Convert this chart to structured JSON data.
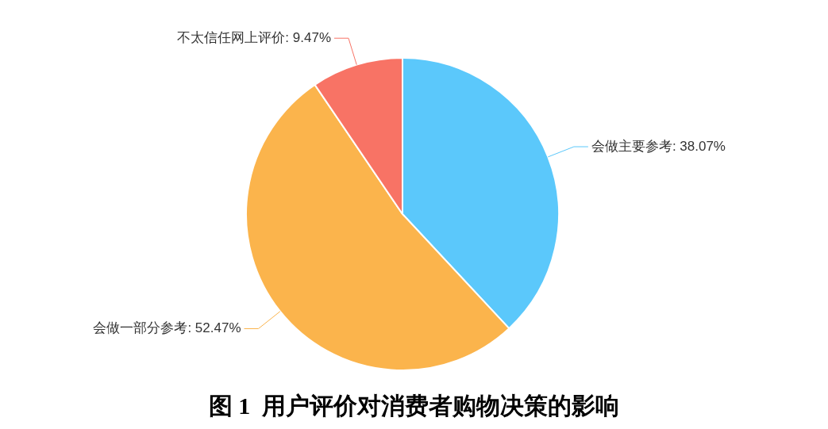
{
  "chart_data": {
    "type": "pie",
    "title": "图 1  用户评价对消费者购物决策的影响",
    "categories": [
      "会做主要参考",
      "会做一部分参考",
      "不太信任网上评价"
    ],
    "values": [
      38.07,
      52.47,
      9.47
    ],
    "colors": [
      "#5bc8fb",
      "#fbb44c",
      "#f87365"
    ],
    "value_labels": [
      "38.07%",
      "52.47%",
      "9.47%"
    ],
    "legend": false
  }
}
